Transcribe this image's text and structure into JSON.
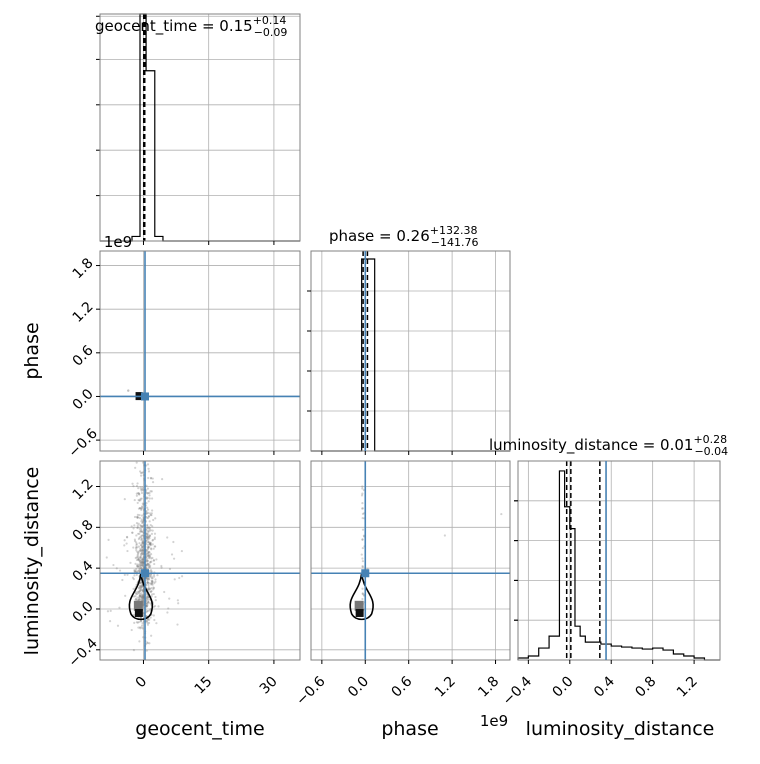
{
  "chart_data": {
    "type": "corner",
    "parameters": [
      "geocent_time",
      "phase",
      "luminosity_distance"
    ],
    "colors": {
      "truth": "#4682b4",
      "hist": "#000000",
      "samples": "#808080"
    },
    "grid": true,
    "titles": [
      {
        "param": "geocent_time",
        "text": "geocent_time = 0.15",
        "sup": "+0.14",
        "sub": "−0.09"
      },
      {
        "param": "phase",
        "text": "phase = 0.26",
        "sup": "+132.38",
        "sub": "−141.76"
      },
      {
        "param": "luminosity_distance",
        "text": "luminosity_distance = 0.01",
        "sup": "+0.28",
        "sub": "−0.04"
      }
    ],
    "offset_texts": [
      "1e9",
      "1e9"
    ],
    "axes": {
      "geocent_time": {
        "range": [
          -10,
          36
        ],
        "ticks": [
          0,
          15,
          30
        ],
        "tick_labels": [
          "0",
          "15",
          "30"
        ],
        "truth": 0.35
      },
      "phase": {
        "range": [
          -0.75,
          2.0
        ],
        "ticks": [
          -0.6,
          0.0,
          0.6,
          1.2,
          1.8
        ],
        "tick_labels": [
          "−0.6",
          "0.0",
          "0.6",
          "1.2",
          "1.8"
        ],
        "truth": 0.0,
        "axis_scale_label": "1e9"
      },
      "luminosity_distance": {
        "range": [
          -0.5,
          1.45
        ],
        "ticks": [
          -0.4,
          0.0,
          0.4,
          0.8,
          1.2
        ],
        "tick_labels": [
          "−0.4",
          "0.0",
          "0.4",
          "0.8",
          "1.2"
        ],
        "truth": 0.35
      }
    },
    "hist_geocent_time": {
      "edges": [
        -10,
        -8.16,
        -6.32,
        -4.48,
        -2.64,
        -0.8,
        0.6,
        2.6,
        4.48,
        6.32,
        8.16,
        10,
        36
      ],
      "counts": [
        0,
        0,
        0,
        0,
        0.02,
        1.0,
        0.75,
        0.02,
        0,
        0,
        0,
        0
      ],
      "quantiles": [
        0.06,
        0.15,
        0.29
      ]
    },
    "hist_phase": {
      "edges": [
        -0.75,
        -0.05,
        0.03,
        0.13,
        2.0
      ],
      "counts": [
        0,
        0.96,
        0.96,
        0
      ],
      "quantiles": [
        -0.03,
        0.0,
        0.03
      ]
    },
    "hist_luminosity_distance": {
      "edges": [
        -0.5,
        -0.4,
        -0.3,
        -0.2,
        -0.1,
        -0.05,
        0.0,
        0.05,
        0.1,
        0.15,
        0.2,
        0.25,
        0.3,
        0.4,
        0.5,
        0.6,
        0.7,
        0.8,
        0.9,
        1.0,
        1.1,
        1.2,
        1.3,
        1.45
      ],
      "counts": [
        0.01,
        0.02,
        0.06,
        0.12,
        0.95,
        0.77,
        0.66,
        0.17,
        0.12,
        0.09,
        0.09,
        0.09,
        0.08,
        0.07,
        0.065,
        0.06,
        0.055,
        0.06,
        0.05,
        0.03,
        0.02,
        0.01,
        0.0
      ],
      "quantiles": [
        -0.03,
        0.01,
        0.29
      ]
    }
  }
}
